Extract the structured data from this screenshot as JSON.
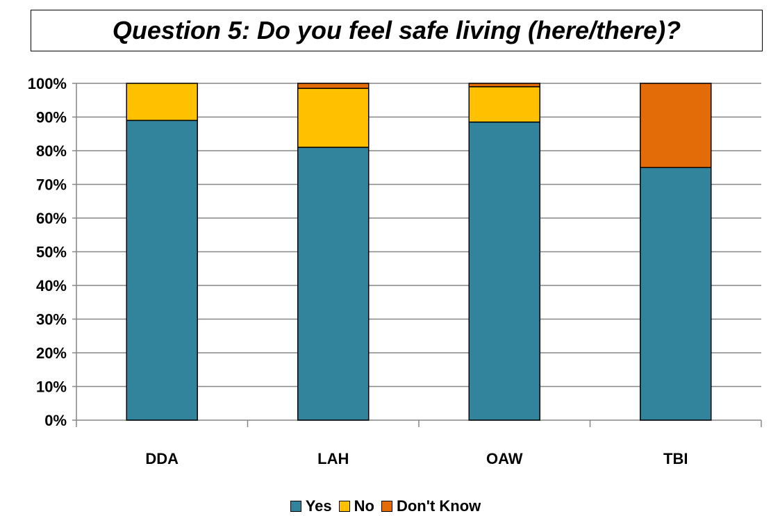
{
  "chart_data": {
    "type": "bar",
    "stacked": true,
    "title": "Question 5:  Do you feel safe living (here/there)?",
    "categories": [
      "DDA",
      "LAH",
      "OAW",
      "TBI"
    ],
    "series": [
      {
        "name": "Yes",
        "color": "#31849B",
        "values": [
          89,
          81,
          88.5,
          75
        ]
      },
      {
        "name": "No",
        "color": "#FFC000",
        "values": [
          11,
          17.5,
          10.5,
          0
        ]
      },
      {
        "name": "Don't Know",
        "color": "#E36C09",
        "values": [
          0,
          1.5,
          1,
          25
        ]
      }
    ],
    "ylim": [
      0,
      100
    ],
    "yticks": [
      "0%",
      "10%",
      "20%",
      "30%",
      "40%",
      "50%",
      "60%",
      "70%",
      "80%",
      "90%",
      "100%"
    ],
    "grid": true,
    "legend_position": "bottom"
  }
}
